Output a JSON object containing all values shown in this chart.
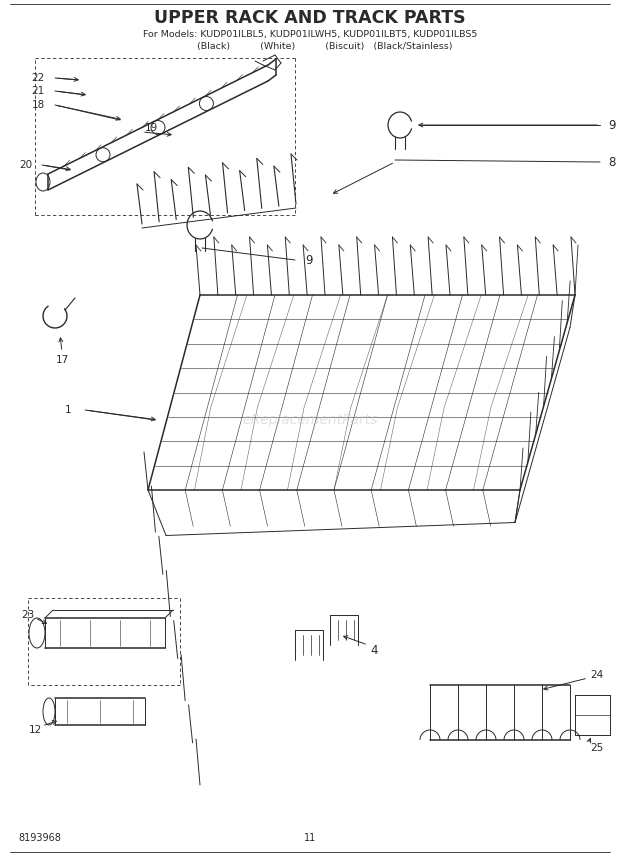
{
  "title": "UPPER RACK AND TRACK PARTS",
  "subtitle_line1": "For Models: KUDP01ILBL5, KUDP01ILWH5, KUDP01ILBT5, KUDP01ILBS5",
  "subtitle_line2": "              (Black)              (White)          (Biscuit)   (Black/Stainless)",
  "page_number": "11",
  "part_number": "8193968",
  "background_color": "#ffffff",
  "line_color": "#2a2a2a",
  "watermark_text": "eReplacementParts",
  "watermark_color": "#c8c8c8",
  "figw": 6.2,
  "figh": 8.56,
  "dpi": 100
}
